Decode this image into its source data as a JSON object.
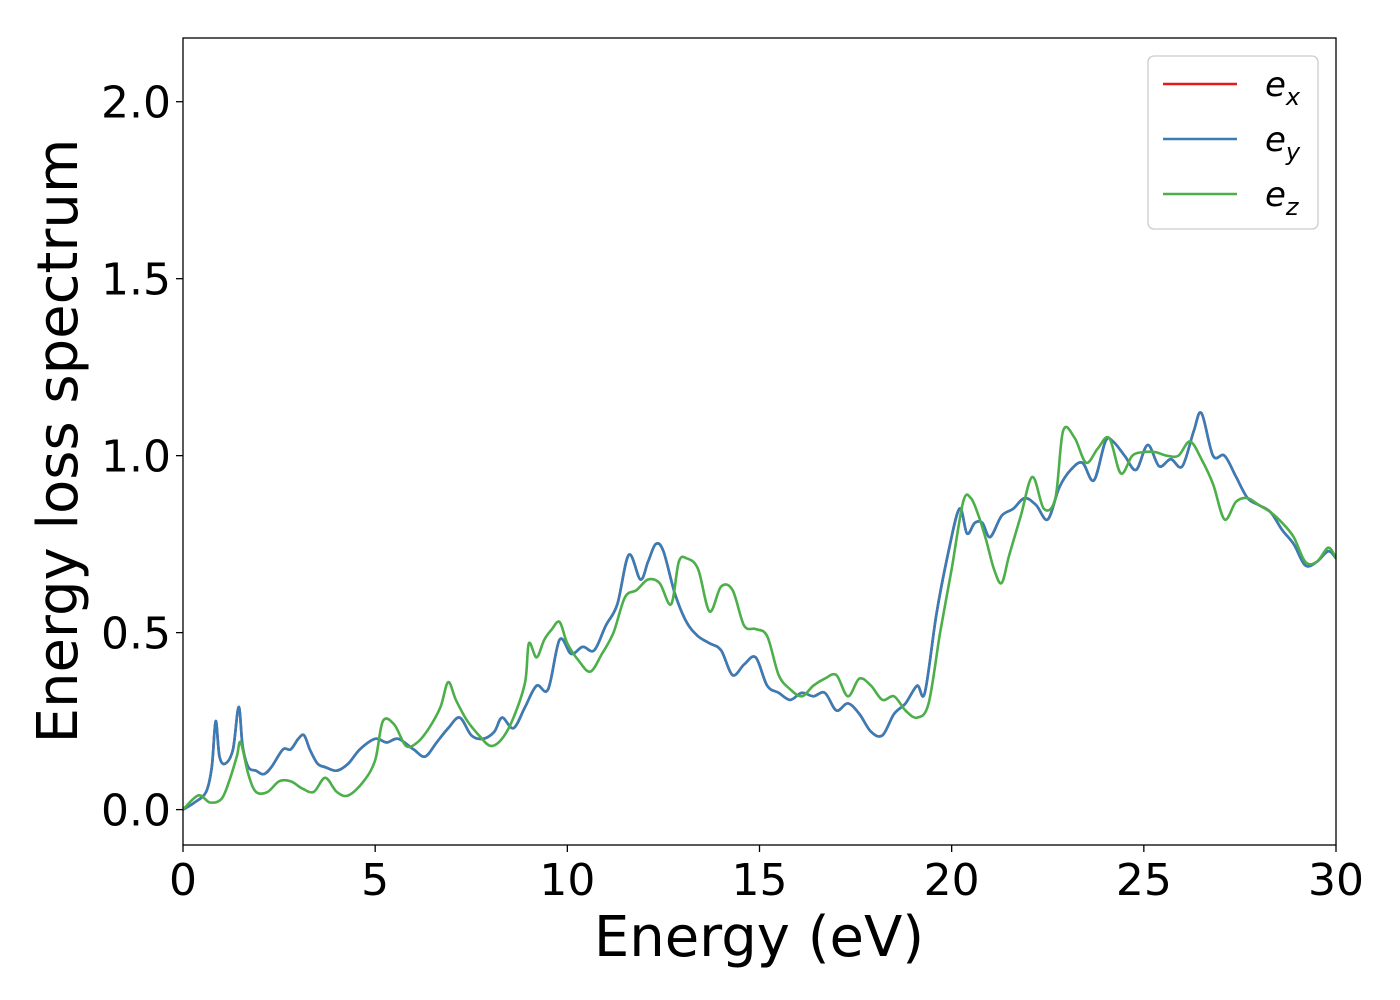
{
  "chart_data": {
    "type": "line",
    "xlabel": "Energy (eV)",
    "ylabel": "Energy loss spectrum",
    "xlim": [
      0,
      30
    ],
    "ylim": [
      -0.1,
      2.18
    ],
    "xticks": [
      0,
      5,
      10,
      15,
      20,
      25,
      30
    ],
    "yticks": [
      0.0,
      0.5,
      1.0,
      1.5,
      2.0
    ],
    "xtick_labels": [
      "0",
      "5",
      "10",
      "15",
      "20",
      "25",
      "30"
    ],
    "ytick_labels": [
      "0.0",
      "0.5",
      "1.0",
      "1.5",
      "2.0"
    ],
    "grid": false,
    "legend_position": "top-right",
    "series": [
      {
        "name": "e_x",
        "legend_base": "e",
        "legend_sub": "x",
        "color": "#e41a1c",
        "x": [
          0,
          0.3,
          0.6,
          0.75,
          0.85,
          0.95,
          1.1,
          1.3,
          1.45,
          1.55,
          1.7,
          1.9,
          2.1,
          2.3,
          2.6,
          2.8,
          3.0,
          3.15,
          3.3,
          3.5,
          3.7,
          4.0,
          4.3,
          4.6,
          5.0,
          5.3,
          5.6,
          6.0,
          6.3,
          6.6,
          6.9,
          7.2,
          7.5,
          7.8,
          8.1,
          8.3,
          8.6,
          8.9,
          9.2,
          9.5,
          9.8,
          10.1,
          10.4,
          10.7,
          11.0,
          11.3,
          11.6,
          11.9,
          12.1,
          12.3,
          12.5,
          12.8,
          13.1,
          13.4,
          13.7,
          14.0,
          14.3,
          14.6,
          14.9,
          15.2,
          15.5,
          15.8,
          16.1,
          16.4,
          16.7,
          17.0,
          17.3,
          17.6,
          17.9,
          18.2,
          18.5,
          18.8,
          19.1,
          19.3,
          19.6,
          19.9,
          20.2,
          20.4,
          20.6,
          20.8,
          21.0,
          21.3,
          21.6,
          21.9,
          22.2,
          22.5,
          22.8,
          23.1,
          23.4,
          23.7,
          24.0,
          24.2,
          24.5,
          24.8,
          25.1,
          25.4,
          25.7,
          26.0,
          26.3,
          26.5,
          26.8,
          27.1,
          27.4,
          27.7,
          28.0,
          28.3,
          28.6,
          28.9,
          29.2,
          29.5,
          29.8,
          30.0
        ],
        "y": [
          0.0,
          0.02,
          0.05,
          0.12,
          0.25,
          0.15,
          0.13,
          0.17,
          0.29,
          0.18,
          0.12,
          0.11,
          0.1,
          0.12,
          0.17,
          0.17,
          0.2,
          0.21,
          0.17,
          0.13,
          0.12,
          0.11,
          0.13,
          0.17,
          0.2,
          0.19,
          0.2,
          0.17,
          0.15,
          0.19,
          0.23,
          0.26,
          0.21,
          0.2,
          0.22,
          0.26,
          0.23,
          0.29,
          0.35,
          0.34,
          0.48,
          0.44,
          0.46,
          0.45,
          0.52,
          0.58,
          0.72,
          0.65,
          0.7,
          0.75,
          0.73,
          0.61,
          0.53,
          0.49,
          0.47,
          0.45,
          0.38,
          0.41,
          0.43,
          0.35,
          0.33,
          0.31,
          0.33,
          0.32,
          0.33,
          0.28,
          0.3,
          0.27,
          0.22,
          0.21,
          0.27,
          0.3,
          0.35,
          0.33,
          0.55,
          0.72,
          0.85,
          0.78,
          0.81,
          0.81,
          0.77,
          0.83,
          0.85,
          0.88,
          0.86,
          0.82,
          0.91,
          0.96,
          0.98,
          0.93,
          1.04,
          1.04,
          1.0,
          0.96,
          1.03,
          0.97,
          0.99,
          0.97,
          1.07,
          1.12,
          1.0,
          1.0,
          0.94,
          0.88,
          0.86,
          0.84,
          0.79,
          0.75,
          0.69,
          0.7,
          0.73,
          0.71
        ]
      },
      {
        "name": "e_y",
        "legend_base": "e",
        "legend_sub": "y",
        "color": "#377eb8",
        "x": [
          0,
          0.3,
          0.6,
          0.75,
          0.85,
          0.95,
          1.1,
          1.3,
          1.45,
          1.55,
          1.7,
          1.9,
          2.1,
          2.3,
          2.6,
          2.8,
          3.0,
          3.15,
          3.3,
          3.5,
          3.7,
          4.0,
          4.3,
          4.6,
          5.0,
          5.3,
          5.6,
          6.0,
          6.3,
          6.6,
          6.9,
          7.2,
          7.5,
          7.8,
          8.1,
          8.3,
          8.6,
          8.9,
          9.2,
          9.5,
          9.8,
          10.1,
          10.4,
          10.7,
          11.0,
          11.3,
          11.6,
          11.9,
          12.1,
          12.3,
          12.5,
          12.8,
          13.1,
          13.4,
          13.7,
          14.0,
          14.3,
          14.6,
          14.9,
          15.2,
          15.5,
          15.8,
          16.1,
          16.4,
          16.7,
          17.0,
          17.3,
          17.6,
          17.9,
          18.2,
          18.5,
          18.8,
          19.1,
          19.3,
          19.6,
          19.9,
          20.2,
          20.4,
          20.6,
          20.8,
          21.0,
          21.3,
          21.6,
          21.9,
          22.2,
          22.5,
          22.8,
          23.1,
          23.4,
          23.7,
          24.0,
          24.2,
          24.5,
          24.8,
          25.1,
          25.4,
          25.7,
          26.0,
          26.3,
          26.5,
          26.8,
          27.1,
          27.4,
          27.7,
          28.0,
          28.3,
          28.6,
          28.9,
          29.2,
          29.5,
          29.8,
          30.0
        ],
        "y": [
          0.0,
          0.02,
          0.05,
          0.12,
          0.25,
          0.15,
          0.13,
          0.17,
          0.29,
          0.18,
          0.12,
          0.11,
          0.1,
          0.12,
          0.17,
          0.17,
          0.2,
          0.21,
          0.17,
          0.13,
          0.12,
          0.11,
          0.13,
          0.17,
          0.2,
          0.19,
          0.2,
          0.17,
          0.15,
          0.19,
          0.23,
          0.26,
          0.21,
          0.2,
          0.22,
          0.26,
          0.23,
          0.29,
          0.35,
          0.34,
          0.48,
          0.44,
          0.46,
          0.45,
          0.52,
          0.58,
          0.72,
          0.65,
          0.7,
          0.75,
          0.73,
          0.61,
          0.53,
          0.49,
          0.47,
          0.45,
          0.38,
          0.41,
          0.43,
          0.35,
          0.33,
          0.31,
          0.33,
          0.32,
          0.33,
          0.28,
          0.3,
          0.27,
          0.22,
          0.21,
          0.27,
          0.3,
          0.35,
          0.33,
          0.55,
          0.72,
          0.85,
          0.78,
          0.81,
          0.81,
          0.77,
          0.83,
          0.85,
          0.88,
          0.86,
          0.82,
          0.91,
          0.96,
          0.98,
          0.93,
          1.04,
          1.04,
          1.0,
          0.96,
          1.03,
          0.97,
          0.99,
          0.97,
          1.07,
          1.12,
          1.0,
          1.0,
          0.94,
          0.88,
          0.86,
          0.84,
          0.79,
          0.75,
          0.69,
          0.7,
          0.73,
          0.71
        ]
      },
      {
        "name": "e_z",
        "legend_base": "e",
        "legend_sub": "z",
        "color": "#4daf4a",
        "x": [
          0,
          0.4,
          0.7,
          1.0,
          1.2,
          1.4,
          1.5,
          1.7,
          1.9,
          2.2,
          2.5,
          2.8,
          3.1,
          3.4,
          3.7,
          4.0,
          4.3,
          4.7,
          5.0,
          5.2,
          5.5,
          5.8,
          6.1,
          6.4,
          6.7,
          6.9,
          7.1,
          7.4,
          7.7,
          8.0,
          8.3,
          8.6,
          8.9,
          9.0,
          9.2,
          9.4,
          9.6,
          9.8,
          10.0,
          10.3,
          10.6,
          10.9,
          11.2,
          11.5,
          11.8,
          12.1,
          12.4,
          12.7,
          12.9,
          13.1,
          13.4,
          13.7,
          14.0,
          14.3,
          14.6,
          14.9,
          15.2,
          15.5,
          15.8,
          16.1,
          16.4,
          16.7,
          17.0,
          17.3,
          17.6,
          17.9,
          18.2,
          18.5,
          18.8,
          19.1,
          19.4,
          19.7,
          20.0,
          20.3,
          20.5,
          20.7,
          20.9,
          21.1,
          21.3,
          21.5,
          21.8,
          22.1,
          22.4,
          22.7,
          22.9,
          23.2,
          23.5,
          23.8,
          24.1,
          24.4,
          24.7,
          25.0,
          25.3,
          25.6,
          25.9,
          26.2,
          26.5,
          26.8,
          27.1,
          27.4,
          27.7,
          28.0,
          28.3,
          28.6,
          28.9,
          29.2,
          29.5,
          29.8,
          30.0
        ],
        "y": [
          0.0,
          0.04,
          0.02,
          0.03,
          0.08,
          0.15,
          0.19,
          0.1,
          0.05,
          0.05,
          0.08,
          0.08,
          0.06,
          0.05,
          0.09,
          0.05,
          0.04,
          0.08,
          0.14,
          0.25,
          0.24,
          0.18,
          0.19,
          0.23,
          0.29,
          0.36,
          0.31,
          0.25,
          0.21,
          0.18,
          0.2,
          0.26,
          0.36,
          0.47,
          0.43,
          0.48,
          0.51,
          0.53,
          0.47,
          0.42,
          0.39,
          0.44,
          0.5,
          0.6,
          0.62,
          0.65,
          0.64,
          0.58,
          0.7,
          0.71,
          0.68,
          0.56,
          0.63,
          0.62,
          0.52,
          0.51,
          0.49,
          0.38,
          0.34,
          0.32,
          0.35,
          0.37,
          0.38,
          0.32,
          0.37,
          0.35,
          0.31,
          0.32,
          0.28,
          0.26,
          0.3,
          0.5,
          0.68,
          0.87,
          0.88,
          0.83,
          0.76,
          0.68,
          0.64,
          0.72,
          0.83,
          0.94,
          0.85,
          0.88,
          1.07,
          1.05,
          0.98,
          1.02,
          1.05,
          0.95,
          1.0,
          1.01,
          1.01,
          1.0,
          1.0,
          1.04,
          0.99,
          0.92,
          0.82,
          0.87,
          0.88,
          0.86,
          0.84,
          0.81,
          0.77,
          0.7,
          0.7,
          0.74,
          0.71
        ]
      }
    ]
  }
}
